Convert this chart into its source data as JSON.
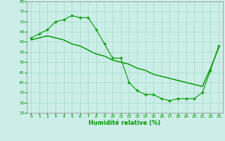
{
  "xlabel": "Humidité relative (%)",
  "xlim": [
    -0.5,
    23.5
  ],
  "ylim": [
    25,
    80
  ],
  "yticks": [
    25,
    30,
    35,
    40,
    45,
    50,
    55,
    60,
    65,
    70,
    75,
    80
  ],
  "xticks": [
    0,
    1,
    2,
    3,
    4,
    5,
    6,
    7,
    8,
    9,
    10,
    11,
    12,
    13,
    14,
    15,
    16,
    17,
    18,
    19,
    20,
    21,
    22,
    23
  ],
  "bg_color": "#cceee8",
  "grid_color": "#aaddcc",
  "line_color": "#009900",
  "line1_x": [
    0,
    1,
    2,
    3,
    4,
    5,
    6,
    7,
    8,
    9,
    10,
    11,
    12,
    13,
    14,
    15,
    16,
    17,
    18,
    19,
    20,
    21,
    22,
    23
  ],
  "line1_y": [
    62,
    64,
    66,
    70,
    71,
    73,
    72,
    72,
    66,
    59,
    52,
    52,
    40,
    36,
    34,
    34,
    32,
    31,
    32,
    32,
    32,
    35,
    46,
    58
  ],
  "line2_x": [
    0,
    1,
    2,
    3,
    4,
    5,
    6,
    7,
    8,
    9,
    10,
    11,
    12,
    13,
    14,
    15,
    16,
    17,
    18,
    19,
    20,
    21,
    22,
    23
  ],
  "line2_y": [
    61,
    62,
    63,
    62,
    61,
    59,
    58,
    56,
    54,
    53,
    51,
    50,
    49,
    47,
    46,
    44,
    43,
    42,
    41,
    40,
    39,
    38,
    47,
    57
  ],
  "line3_x": [
    0,
    1,
    2,
    3,
    4,
    5,
    6,
    7,
    8,
    9,
    10,
    11,
    12,
    13,
    14,
    15,
    16,
    17,
    18,
    19,
    20,
    21,
    22,
    23
  ],
  "line3_y": [
    61,
    62,
    63,
    62,
    61,
    59,
    58,
    56,
    54,
    53,
    51,
    50,
    49,
    47,
    46,
    44,
    43,
    42,
    41,
    40,
    39,
    38,
    47,
    57
  ]
}
